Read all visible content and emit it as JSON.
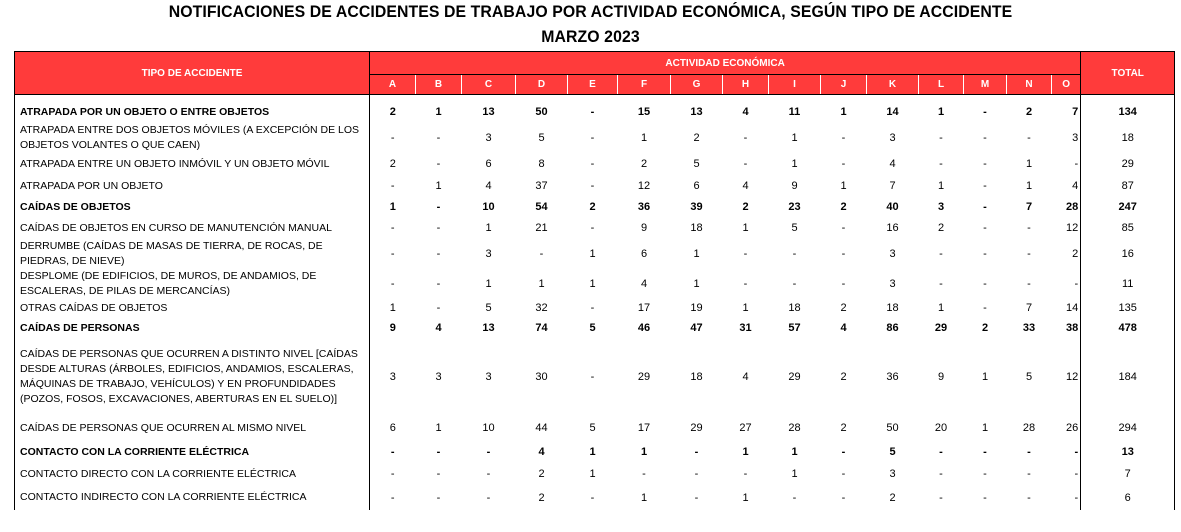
{
  "title_line1": "NOTIFICACIONES DE ACCIDENTES DE TRABAJO POR ACTIVIDAD ECONÓMICA, SEGÚN  TIPO DE  ACCIDENTE",
  "title_line2": "MARZO 2023",
  "header": {
    "tipo": "TIPO DE ACCIDENTE",
    "actividad": "ACTIVIDAD ECONÓMICA",
    "total": "TOTAL",
    "codes": [
      "A",
      "B",
      "C",
      "D",
      "E",
      "F",
      "G",
      "H",
      "I",
      "J",
      "K",
      "L",
      "M",
      "N",
      "O"
    ]
  },
  "rows": [
    {
      "label": "ATRAPADA POR UN OBJETO O ENTRE OBJETOS",
      "bold": true,
      "values": [
        "2",
        "1",
        "13",
        "50",
        "-",
        "15",
        "13",
        "4",
        "11",
        "1",
        "14",
        "1",
        "-",
        "2",
        "7"
      ],
      "total": "134"
    },
    {
      "label": "ATRAPADA ENTRE DOS OBJETOS MÓVILES (A EXCEPCIÓN DE LOS OBJETOS VOLANTES O QUE CAEN)",
      "bold": false,
      "values": [
        "-",
        "-",
        "3",
        "5",
        "-",
        "1",
        "2",
        "-",
        "1",
        "-",
        "3",
        "-",
        "-",
        "-",
        "3"
      ],
      "total": "18"
    },
    {
      "label": "ATRAPADA ENTRE UN OBJETO INMÓVIL Y UN OBJETO MÓVIL",
      "bold": false,
      "values": [
        "2",
        "-",
        "6",
        "8",
        "-",
        "2",
        "5",
        "-",
        "1",
        "-",
        "4",
        "-",
        "-",
        "1",
        "-"
      ],
      "total": "29"
    },
    {
      "label": "ATRAPADA POR UN OBJETO",
      "bold": false,
      "values": [
        "-",
        "1",
        "4",
        "37",
        "-",
        "12",
        "6",
        "4",
        "9",
        "1",
        "7",
        "1",
        "-",
        "1",
        "4"
      ],
      "total": "87"
    },
    {
      "label": "CAÍDAS DE OBJETOS",
      "bold": true,
      "values": [
        "1",
        "-",
        "10",
        "54",
        "2",
        "36",
        "39",
        "2",
        "23",
        "2",
        "40",
        "3",
        "-",
        "7",
        "28"
      ],
      "total": "247"
    },
    {
      "label": "CAÍDAS DE OBJETOS EN CURSO DE MANUTENCIÓN MANUAL",
      "bold": false,
      "values": [
        "-",
        "-",
        "1",
        "21",
        "-",
        "9",
        "18",
        "1",
        "5",
        "-",
        "16",
        "2",
        "-",
        "-",
        "12"
      ],
      "total": "85"
    },
    {
      "label": "DERRUMBE (CAÍDAS DE MASAS DE TIERRA, DE ROCAS, DE PIEDRAS, DE NIEVE)",
      "bold": false,
      "values": [
        "-",
        "-",
        "3",
        "-",
        "1",
        "6",
        "1",
        "-",
        "-",
        "-",
        "3",
        "-",
        "-",
        "-",
        "2"
      ],
      "total": "16"
    },
    {
      "label": "DESPLOME (DE EDIFICIOS, DE MUROS, DE ANDAMIOS, DE ESCALERAS, DE PILAS DE MERCANCÍAS)",
      "bold": false,
      "values": [
        "-",
        "-",
        "1",
        "1",
        "1",
        "4",
        "1",
        "-",
        "-",
        "-",
        "3",
        "-",
        "-",
        "-",
        "-"
      ],
      "total": "11"
    },
    {
      "label": "OTRAS CAÍDAS DE OBJETOS",
      "bold": false,
      "values": [
        "1",
        "-",
        "5",
        "32",
        "-",
        "17",
        "19",
        "1",
        "18",
        "2",
        "18",
        "1",
        "-",
        "7",
        "14"
      ],
      "total": "135"
    },
    {
      "label": "CAÍDAS DE PERSONAS",
      "bold": true,
      "values": [
        "9",
        "4",
        "13",
        "74",
        "5",
        "46",
        "47",
        "31",
        "57",
        "4",
        "86",
        "29",
        "2",
        "33",
        "38"
      ],
      "total": "478"
    },
    {
      "label": "CAÍDAS DE PERSONAS QUE OCURREN A DISTINTO NIVEL [CAÍDAS DESDE ALTURAS (ÁRBOLES, EDIFICIOS, ANDAMIOS, ESCALERAS, MÁQUINAS DE TRABAJO, VEHÍCULOS) Y EN PROFUNDIDADES (POZOS, FOSOS, EXCAVACIONES, ABERTURAS EN EL SUELO)]",
      "bold": false,
      "values": [
        "3",
        "3",
        "3",
        "30",
        "-",
        "29",
        "18",
        "4",
        "29",
        "2",
        "36",
        "9",
        "1",
        "5",
        "12"
      ],
      "total": "184"
    },
    {
      "label": "CAÍDAS DE PERSONAS QUE OCURREN AL MISMO NIVEL",
      "bold": false,
      "values": [
        "6",
        "1",
        "10",
        "44",
        "5",
        "17",
        "29",
        "27",
        "28",
        "2",
        "50",
        "20",
        "1",
        "28",
        "26"
      ],
      "total": "294"
    },
    {
      "label": "CONTACTO CON LA CORRIENTE ELÉCTRICA",
      "bold": true,
      "values": [
        "-",
        "-",
        "-",
        "4",
        "1",
        "1",
        "-",
        "1",
        "1",
        "-",
        "5",
        "-",
        "-",
        "-",
        "-"
      ],
      "total": "13"
    },
    {
      "label": "CONTACTO DIRECTO CON LA CORRIENTE ELÉCTRICA",
      "bold": false,
      "values": [
        "-",
        "-",
        "-",
        "2",
        "1",
        "-",
        "-",
        "-",
        "1",
        "-",
        "3",
        "-",
        "-",
        "-",
        "-"
      ],
      "total": "7"
    },
    {
      "label": "CONTACTO INDIRECTO CON LA CORRIENTE ELÉCTRICA",
      "bold": false,
      "values": [
        "-",
        "-",
        "-",
        "2",
        "-",
        "1",
        "-",
        "1",
        "-",
        "-",
        "2",
        "-",
        "-",
        "-",
        "-"
      ],
      "total": "6"
    }
  ]
}
